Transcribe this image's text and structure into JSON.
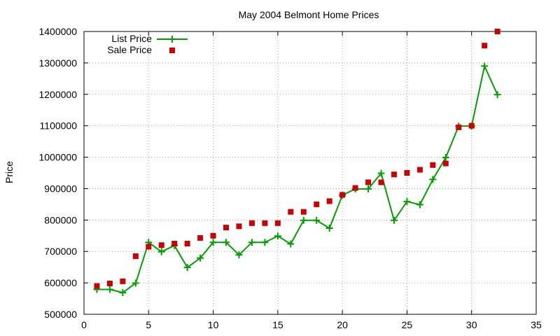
{
  "chart_data": {
    "type": "line",
    "title": "May 2004 Belmont Home Prices",
    "xlabel": "",
    "ylabel": "Price",
    "xlim": [
      0,
      35
    ],
    "ylim": [
      500000,
      1400000
    ],
    "xticks": [
      0,
      5,
      10,
      15,
      20,
      25,
      30,
      35
    ],
    "yticks": [
      500000,
      600000,
      700000,
      800000,
      900000,
      1000000,
      1100000,
      1200000,
      1300000,
      1400000
    ],
    "grid": true,
    "legend_position": "top-left",
    "series": [
      {
        "name": "List Price",
        "style": "line-plus",
        "color": "#00a000",
        "x": [
          1,
          2,
          3,
          4,
          5,
          6,
          7,
          8,
          9,
          10,
          11,
          12,
          13,
          14,
          15,
          16,
          17,
          18,
          19,
          20,
          21,
          22,
          23,
          24,
          25,
          26,
          27,
          28,
          29,
          30,
          31,
          32
        ],
        "y": [
          579000,
          579000,
          569000,
          599000,
          729000,
          699000,
          719000,
          649000,
          679000,
          729000,
          729000,
          689000,
          729000,
          729000,
          749000,
          724000,
          799000,
          799000,
          774000,
          879000,
          899000,
          899000,
          949000,
          799000,
          859000,
          849000,
          929000,
          999000,
          1099000,
          1099000,
          1290000,
          1199000
        ]
      },
      {
        "name": "Sale Price",
        "style": "square-points",
        "color": "#cc0000",
        "x": [
          1,
          2,
          3,
          4,
          5,
          6,
          7,
          8,
          9,
          10,
          11,
          12,
          13,
          14,
          15,
          16,
          17,
          18,
          19,
          20,
          21,
          22,
          23,
          24,
          25,
          26,
          27,
          28,
          29,
          30,
          31,
          32
        ],
        "y": [
          590000,
          598000,
          605000,
          685000,
          715000,
          720000,
          725000,
          725000,
          743000,
          750000,
          776000,
          780000,
          790000,
          790000,
          790000,
          826000,
          826000,
          850000,
          860000,
          880000,
          902000,
          920000,
          920000,
          945000,
          950000,
          960000,
          975000,
          980000,
          1095000,
          1100000,
          1355000,
          1400000
        ]
      }
    ]
  }
}
